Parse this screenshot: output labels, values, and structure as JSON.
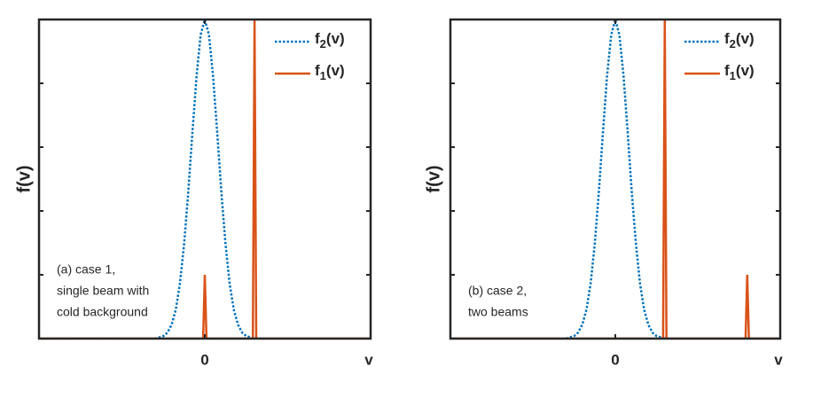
{
  "chart_data": [
    {
      "type": "line",
      "ylabel": "f(v)",
      "xlabel": "v",
      "annotation": [
        "(a) case 1,",
        "single beam with",
        "cold background"
      ],
      "xlim": [
        -1,
        1
      ],
      "ylim": [
        0,
        1
      ],
      "xticks": [
        0
      ],
      "yticks": [
        0.2,
        0.4,
        0.6,
        0.8
      ],
      "legend": "upper right",
      "series": [
        {
          "name": "f2(v)",
          "color": "#0072bd",
          "style": "dotted",
          "x": [
            -1,
            -0.3,
            -0.25,
            -0.225,
            -0.2,
            -0.175,
            -0.15,
            -0.125,
            -0.1,
            -0.075,
            -0.05,
            -0.025,
            0,
            0.025,
            0.05,
            0.075,
            0.1,
            0.125,
            0.15,
            0.175,
            0.2,
            0.225,
            0.25,
            0.3,
            1
          ],
          "values": [
            0,
            0,
            0.008,
            0.019,
            0.044,
            0.091,
            0.172,
            0.295,
            0.458,
            0.645,
            0.823,
            0.952,
            1,
            0.952,
            0.823,
            0.645,
            0.458,
            0.295,
            0.172,
            0.091,
            0.044,
            0.019,
            0.008,
            0,
            0
          ]
        },
        {
          "name": "f1(v)",
          "color": "#d95319",
          "style": "solid",
          "x": [
            -1,
            -0.01,
            0,
            0.01,
            0.29,
            0.3,
            0.31,
            1
          ],
          "values": [
            0,
            0,
            0.2,
            0,
            0,
            1,
            0,
            0
          ]
        }
      ]
    },
    {
      "type": "line",
      "ylabel": "f(v)",
      "xlabel": "v",
      "annotation": [
        "(b) case 2,",
        "two beams"
      ],
      "xlim": [
        -1,
        1
      ],
      "ylim": [
        0,
        1
      ],
      "xticks": [
        0
      ],
      "yticks": [
        0.2,
        0.4,
        0.6,
        0.8
      ],
      "legend": "upper right",
      "series": [
        {
          "name": "f2(v)",
          "color": "#0072bd",
          "style": "dotted",
          "x": [
            -1,
            -0.3,
            -0.25,
            -0.225,
            -0.2,
            -0.175,
            -0.15,
            -0.125,
            -0.1,
            -0.075,
            -0.05,
            -0.025,
            0,
            0.025,
            0.05,
            0.075,
            0.1,
            0.125,
            0.15,
            0.175,
            0.2,
            0.225,
            0.25,
            0.3,
            1
          ],
          "values": [
            0,
            0,
            0.008,
            0.019,
            0.044,
            0.091,
            0.172,
            0.295,
            0.458,
            0.645,
            0.823,
            0.952,
            1,
            0.952,
            0.823,
            0.645,
            0.458,
            0.295,
            0.172,
            0.091,
            0.044,
            0.019,
            0.008,
            0,
            0
          ]
        },
        {
          "name": "f1(v)",
          "color": "#d95319",
          "style": "solid",
          "x": [
            -1,
            0.29,
            0.3,
            0.31,
            0.79,
            0.8,
            0.81,
            1
          ],
          "values": [
            0,
            0,
            1,
            0,
            0,
            0.2,
            0,
            0
          ]
        }
      ]
    }
  ]
}
